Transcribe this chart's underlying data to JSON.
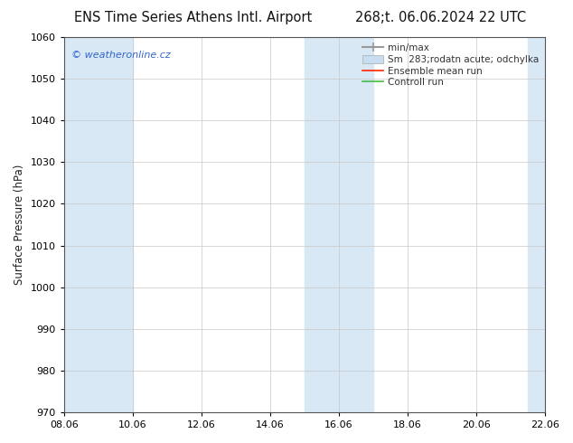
{
  "title_left": "ENS Time Series Athens Intl. Airport",
  "title_right": "268;t. 06.06.2024 22 UTC",
  "ylabel": "Surface Pressure (hPa)",
  "ylim": [
    970,
    1060
  ],
  "yticks": [
    970,
    980,
    990,
    1000,
    1010,
    1020,
    1030,
    1040,
    1050,
    1060
  ],
  "xtick_labels": [
    "08.06",
    "10.06",
    "12.06",
    "14.06",
    "16.06",
    "18.06",
    "20.06",
    "22.06"
  ],
  "xtick_positions": [
    0,
    2,
    4,
    6,
    8,
    10,
    12,
    14
  ],
  "watermark": "© weatheronline.cz",
  "watermark_color": "#3366cc",
  "shaded_bands": [
    {
      "x_start": 0.7,
      "x_end": 2.3
    },
    {
      "x_start": 7.7,
      "x_end": 9.3
    },
    {
      "x_start": 13.7,
      "x_end": 14.0
    }
  ],
  "band_color": "#d8e8f5",
  "background_color": "#ffffff",
  "grid_color": "#c8c8c8",
  "legend_labels": [
    "min/max",
    "Sm  283;rodatn acute; odchylka",
    "Ensemble mean run",
    "Controll run"
  ],
  "legend_colors": [
    "#aaaaaa",
    "#c8ddf0",
    "#ff2200",
    "#44bb44"
  ],
  "title_fontsize": 10.5,
  "axis_label_fontsize": 8.5,
  "tick_fontsize": 8,
  "legend_fontsize": 7.5
}
